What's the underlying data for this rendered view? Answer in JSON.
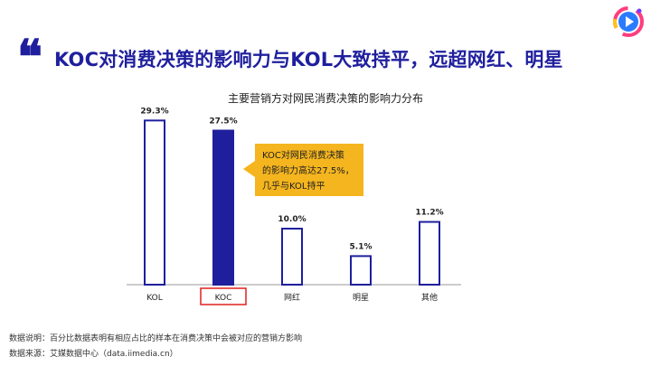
{
  "headline": {
    "quote_glyph": "❝",
    "text": "KOC对消费决策的影响力与KOL大致持平，远超网红、明星"
  },
  "brand": {
    "icon": "iimedia-play-logo-icon",
    "colors": [
      "#ff3d7f",
      "#2a7bff",
      "#ffc21a",
      "#7a3cff"
    ]
  },
  "chart_data": {
    "type": "bar",
    "title": "主要营销方对网民消费决策的影响力分布",
    "categories": [
      "KOL",
      "KOC",
      "网红",
      "明星",
      "其他"
    ],
    "values": [
      29.3,
      27.5,
      10.0,
      5.1,
      11.2
    ],
    "value_labels": [
      "29.3%",
      "27.5%",
      "10.0%",
      "5.1%",
      "11.2%"
    ],
    "highlight_index": 1,
    "colors": {
      "bar_outline": "#1f1f9e",
      "highlight_fill": "#1f1f9e",
      "highlight_label_box": "#e02020",
      "callout": "#f5b51e"
    },
    "ylim": [
      0,
      30
    ],
    "grid": false,
    "annotation": {
      "lines": [
        "KOC对网民消费决策",
        "的影响力高达27.5%，",
        "几乎与KOL持平"
      ]
    }
  },
  "footnotes": {
    "note": "数据说明：百分比数据表明有相应占比的样本在消费决策中会被对应的营销方影响",
    "source": "数据来源：艾媒数据中心（data.iimedia.cn）"
  }
}
